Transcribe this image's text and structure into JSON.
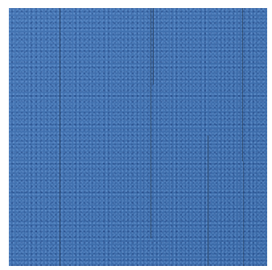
{
  "image": {
    "subject": "carpet-tile-swatch",
    "base_color": "#3d6fb0",
    "stripe_color": "#232d3c",
    "background_color": "#ffffff"
  }
}
